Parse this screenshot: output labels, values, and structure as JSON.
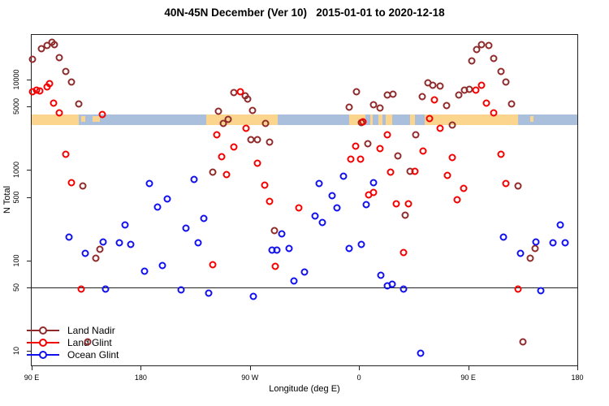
{
  "title": "40N-45N December (Ver 10)   2015-01-01 to 2020-12-18",
  "chart_data": {
    "type": "scatter",
    "title": "40N-45N December (Ver 10)   2015-01-01 to 2020-12-18",
    "xlabel": "Longitude (deg E)",
    "ylabel": "N Total",
    "x_axis": {
      "note": "longitude axis spans 450 deg starting at 90E, wrapping west-to-east",
      "range_axis_deg": [
        90,
        540
      ],
      "ticks": [
        {
          "label": "90 E",
          "deg": 90
        },
        {
          "label": "180",
          "deg": 180
        },
        {
          "label": "90 W",
          "deg": 270
        },
        {
          "label": "0",
          "deg": 360
        },
        {
          "label": "90 E",
          "deg": 450
        },
        {
          "label": "180",
          "deg": 540
        }
      ]
    },
    "y_axis": {
      "scale": "log",
      "range": [
        6.9,
        30970
      ],
      "ticks": [
        10000,
        5000,
        1000,
        500,
        100,
        50,
        10
      ]
    },
    "reference_line_y": 50,
    "map_band": {
      "comment": "strip map of the 40N-45N latitude band drawn across the plot",
      "land_color": "#fbd58d",
      "ocean_color": "#a9bfdb",
      "value_top": 4100,
      "value_bottom": 3100,
      "ocean_segments_deg": [
        [
          129,
          234
        ],
        [
          293,
          352
        ],
        [
          365,
          369
        ],
        [
          371,
          376
        ],
        [
          379,
          382
        ],
        [
          387,
          402
        ],
        [
          406,
          414
        ],
        [
          491,
          540
        ]
      ],
      "land_islets_deg": [
        [
          131,
          134
        ],
        [
          140,
          146
        ],
        [
          501,
          504
        ]
      ]
    },
    "legend": [
      {
        "name": "Land Nadir",
        "color": "#8f2b2b"
      },
      {
        "name": "Land Glint",
        "color": "#f50000"
      },
      {
        "name": "Ocean Glint",
        "color": "#1111ee"
      }
    ],
    "series": [
      {
        "name": "Land Nadir",
        "color": "#8f2b2b",
        "points": [
          [
            91,
            16700
          ],
          [
            98,
            21800
          ],
          [
            103,
            23700
          ],
          [
            107,
            25700
          ],
          [
            109,
            24200
          ],
          [
            113,
            17400
          ],
          [
            118,
            12300
          ],
          [
            123,
            9400
          ],
          [
            129,
            5400
          ],
          [
            132,
            660
          ],
          [
            136,
            12.6
          ],
          [
            143,
            106
          ],
          [
            146,
            133
          ],
          [
            239,
            940
          ],
          [
            244,
            4400
          ],
          [
            248,
            3230
          ],
          [
            252,
            3580
          ],
          [
            257,
            7200
          ],
          [
            266,
            6640
          ],
          [
            268,
            6100
          ],
          [
            271,
            2140
          ],
          [
            272,
            4580
          ],
          [
            276,
            2140
          ],
          [
            283,
            3290
          ],
          [
            286,
            2010
          ],
          [
            290,
            214
          ],
          [
            352,
            4970
          ],
          [
            358,
            7330
          ],
          [
            362,
            3350
          ],
          [
            367,
            1930
          ],
          [
            372,
            5290
          ],
          [
            377,
            4780
          ],
          [
            383,
            6750
          ],
          [
            388,
            6890
          ],
          [
            392,
            1420
          ],
          [
            398,
            317
          ],
          [
            402,
            960
          ],
          [
            407,
            2430
          ],
          [
            412,
            6380
          ],
          [
            417,
            9230
          ],
          [
            421,
            8680
          ],
          [
            427,
            8500
          ],
          [
            432,
            5180
          ],
          [
            437,
            3100
          ],
          [
            442,
            6750
          ],
          [
            447,
            7660
          ],
          [
            451,
            7820
          ],
          [
            453,
            16100
          ],
          [
            457,
            21400
          ],
          [
            461,
            24200
          ],
          [
            467,
            23700
          ],
          [
            471,
            17100
          ],
          [
            477,
            12300
          ],
          [
            481,
            9400
          ],
          [
            486,
            5400
          ],
          [
            491,
            660
          ],
          [
            495,
            12.6
          ],
          [
            501,
            106
          ],
          [
            505,
            136
          ]
        ]
      },
      {
        "name": "Land Glint",
        "color": "#f50000",
        "points": [
          [
            91,
            7330
          ],
          [
            94,
            7660
          ],
          [
            97,
            7500
          ],
          [
            103,
            8310
          ],
          [
            105,
            9030
          ],
          [
            108,
            5500
          ],
          [
            113,
            4300
          ],
          [
            118,
            1480
          ],
          [
            123,
            720
          ],
          [
            131,
            48.5
          ],
          [
            148,
            4050
          ],
          [
            239,
            90
          ],
          [
            243,
            2420
          ],
          [
            247,
            1410
          ],
          [
            251,
            890
          ],
          [
            257,
            1780
          ],
          [
            262,
            7330
          ],
          [
            267,
            2890
          ],
          [
            276,
            1180
          ],
          [
            282,
            675
          ],
          [
            286,
            450
          ],
          [
            291,
            85
          ],
          [
            310,
            380
          ],
          [
            353,
            1300
          ],
          [
            357,
            1810
          ],
          [
            361,
            1300
          ],
          [
            363,
            3430
          ],
          [
            368,
            530
          ],
          [
            372,
            560
          ],
          [
            377,
            1700
          ],
          [
            383,
            2430
          ],
          [
            386,
            940
          ],
          [
            391,
            420
          ],
          [
            397,
            121
          ],
          [
            401,
            420
          ],
          [
            406,
            960
          ],
          [
            413,
            1600
          ],
          [
            418,
            3660
          ],
          [
            422,
            5870
          ],
          [
            427,
            2860
          ],
          [
            433,
            865
          ],
          [
            437,
            1370
          ],
          [
            441,
            465
          ],
          [
            446,
            620
          ],
          [
            456,
            7660
          ],
          [
            461,
            8680
          ],
          [
            465,
            5500
          ],
          [
            471,
            4300
          ],
          [
            477,
            1480
          ],
          [
            481,
            700
          ],
          [
            491,
            48.5
          ]
        ]
      },
      {
        "name": "Ocean Glint",
        "color": "#1111ee",
        "points": [
          [
            121,
            180
          ],
          [
            134,
            120
          ],
          [
            149,
            160
          ],
          [
            151,
            48.5
          ],
          [
            162,
            155
          ],
          [
            167,
            244
          ],
          [
            172,
            149
          ],
          [
            183,
            76
          ],
          [
            187,
            710
          ],
          [
            194,
            390
          ],
          [
            198,
            88
          ],
          [
            202,
            475
          ],
          [
            213,
            47
          ],
          [
            217,
            228
          ],
          [
            224,
            780
          ],
          [
            227,
            155
          ],
          [
            232,
            293
          ],
          [
            236,
            43.5
          ],
          [
            273,
            40
          ],
          [
            288,
            130
          ],
          [
            292,
            130
          ],
          [
            296,
            196
          ],
          [
            302,
            136
          ],
          [
            306,
            59
          ],
          [
            315,
            74
          ],
          [
            324,
            310
          ],
          [
            327,
            710
          ],
          [
            330,
            262
          ],
          [
            338,
            515
          ],
          [
            342,
            380
          ],
          [
            347,
            850
          ],
          [
            352,
            136
          ],
          [
            362,
            149
          ],
          [
            366,
            410
          ],
          [
            372,
            715
          ],
          [
            378,
            69
          ],
          [
            383,
            52
          ],
          [
            387,
            54
          ],
          [
            397,
            48.5
          ],
          [
            411,
            9.4
          ],
          [
            479,
            182
          ],
          [
            493,
            120
          ],
          [
            506,
            160
          ],
          [
            510,
            46.5
          ],
          [
            520,
            155
          ],
          [
            526,
            244
          ],
          [
            530,
            155
          ]
        ]
      }
    ]
  }
}
